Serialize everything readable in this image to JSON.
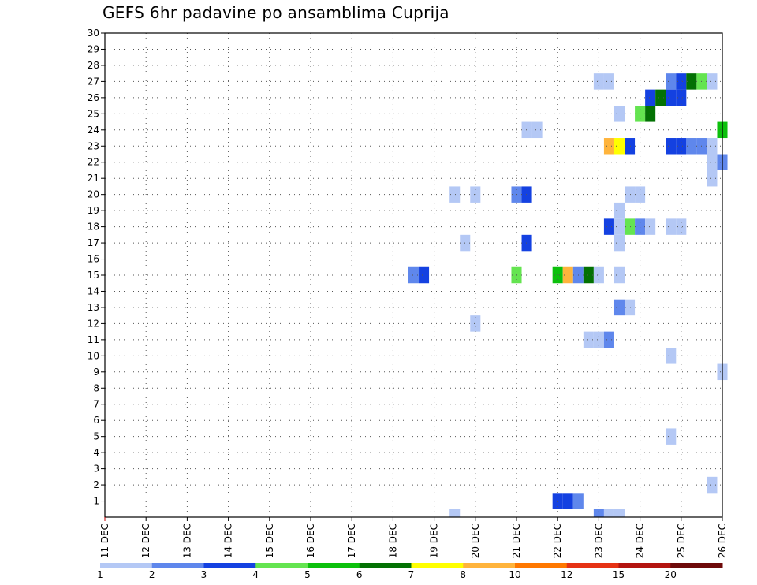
{
  "chart_data": {
    "type": "heatmap",
    "title": "GEFS 6hr padavine po ansamblima Cuprija",
    "xlabel": "",
    "ylabel": "",
    "x_ticks": [
      "11 DEC",
      "12 DEC",
      "13 DEC",
      "14 DEC",
      "15 DEC",
      "16 DEC",
      "17 DEC",
      "18 DEC",
      "19 DEC",
      "20 DEC",
      "21 DEC",
      "22 DEC",
      "23 DEC",
      "24 DEC",
      "25 DEC",
      "26 DEC"
    ],
    "xlim": [
      11,
      26
    ],
    "y_ticks": [
      1,
      2,
      3,
      4,
      5,
      6,
      7,
      8,
      9,
      10,
      11,
      12,
      13,
      14,
      15,
      16,
      17,
      18,
      19,
      20,
      21,
      22,
      23,
      24,
      25,
      26,
      27,
      28,
      29,
      30
    ],
    "ylim": [
      0,
      30
    ],
    "grid": true,
    "legend_position": "bottom",
    "colorbar": {
      "labels": [
        "1",
        "2",
        "3",
        "4",
        "5",
        "6",
        "7",
        "8",
        "10",
        "12",
        "15",
        "20"
      ],
      "colors": [
        "#b4c8f5",
        "#5f87ec",
        "#1441e1",
        "#64e450",
        "#0cc00c",
        "#037103",
        "#ffff00",
        "#ffb43c",
        "#ff7800",
        "#e63214",
        "#b41410",
        "#6e0a0a"
      ]
    },
    "cells": [
      {
        "time": "22.0",
        "member": 1,
        "level": 3
      },
      {
        "time": "22.25",
        "member": 1,
        "level": 3
      },
      {
        "time": "22.5",
        "member": 1,
        "level": 2
      },
      {
        "time": "25.75",
        "member": 2,
        "level": 1
      },
      {
        "time": "24.75",
        "member": 5,
        "level": 1
      },
      {
        "time": "26.0",
        "member": 9,
        "level": 1
      },
      {
        "time": "24.75",
        "member": 10,
        "level": 1
      },
      {
        "time": "22.75",
        "member": 11,
        "level": 1
      },
      {
        "time": "23.0",
        "member": 11,
        "level": 1
      },
      {
        "time": "23.25",
        "member": 11,
        "level": 2
      },
      {
        "time": "20.0",
        "member": 12,
        "level": 1
      },
      {
        "time": "23.5",
        "member": 13,
        "level": 2
      },
      {
        "time": "23.75",
        "member": 13,
        "level": 1
      },
      {
        "time": "18.5",
        "member": 15,
        "level": 2
      },
      {
        "time": "18.75",
        "member": 15,
        "level": 3
      },
      {
        "time": "21.0",
        "member": 15,
        "level": 4
      },
      {
        "time": "22.0",
        "member": 15,
        "level": 5
      },
      {
        "time": "22.25",
        "member": 15,
        "level": 8
      },
      {
        "time": "22.5",
        "member": 15,
        "level": 2
      },
      {
        "time": "22.75",
        "member": 15,
        "level": 6
      },
      {
        "time": "23.0",
        "member": 15,
        "level": 1
      },
      {
        "time": "23.5",
        "member": 15,
        "level": 1
      },
      {
        "time": "19.75",
        "member": 17,
        "level": 1
      },
      {
        "time": "21.25",
        "member": 17,
        "level": 3
      },
      {
        "time": "23.5",
        "member": 17,
        "level": 1
      },
      {
        "time": "23.25",
        "member": 18,
        "level": 3
      },
      {
        "time": "23.5",
        "member": 18,
        "level": 1
      },
      {
        "time": "23.75",
        "member": 18,
        "level": 4
      },
      {
        "time": "24.0",
        "member": 18,
        "level": 2
      },
      {
        "time": "24.25",
        "member": 18,
        "level": 1
      },
      {
        "time": "24.75",
        "member": 18,
        "level": 1
      },
      {
        "time": "25.0",
        "member": 18,
        "level": 1
      },
      {
        "time": "23.5",
        "member": 19,
        "level": 1
      },
      {
        "time": "19.5",
        "member": 20,
        "level": 1
      },
      {
        "time": "20.0",
        "member": 20,
        "level": 1
      },
      {
        "time": "21.0",
        "member": 20,
        "level": 2
      },
      {
        "time": "21.25",
        "member": 20,
        "level": 3
      },
      {
        "time": "23.75",
        "member": 20,
        "level": 1
      },
      {
        "time": "24.0",
        "member": 20,
        "level": 1
      },
      {
        "time": "25.75",
        "member": 21,
        "level": 1
      },
      {
        "time": "26.0",
        "member": 22,
        "level": 2
      },
      {
        "time": "25.75",
        "member": 22,
        "level": 1
      },
      {
        "time": "23.25",
        "member": 23,
        "level": 8
      },
      {
        "time": "23.5",
        "member": 23,
        "level": 7
      },
      {
        "time": "23.75",
        "member": 23,
        "level": 3
      },
      {
        "time": "24.75",
        "member": 23,
        "level": 3
      },
      {
        "time": "25.0",
        "member": 23,
        "level": 3
      },
      {
        "time": "25.25",
        "member": 23,
        "level": 2
      },
      {
        "time": "25.5",
        "member": 23,
        "level": 2
      },
      {
        "time": "25.75",
        "member": 23,
        "level": 1
      },
      {
        "time": "21.25",
        "member": 24,
        "level": 1
      },
      {
        "time": "21.5",
        "member": 24,
        "level": 1
      },
      {
        "time": "26.0",
        "member": 24,
        "level": 5
      },
      {
        "time": "23.5",
        "member": 25,
        "level": 1
      },
      {
        "time": "24.0",
        "member": 25,
        "level": 4
      },
      {
        "time": "24.25",
        "member": 25,
        "level": 6
      },
      {
        "time": "24.25",
        "member": 26,
        "level": 3
      },
      {
        "time": "24.5",
        "member": 26,
        "level": 6
      },
      {
        "time": "24.75",
        "member": 26,
        "level": 3
      },
      {
        "time": "25.0",
        "member": 26,
        "level": 3
      },
      {
        "time": "23.0",
        "member": 27,
        "level": 1
      },
      {
        "time": "23.25",
        "member": 27,
        "level": 1
      },
      {
        "time": "24.75",
        "member": 27,
        "level": 2
      },
      {
        "time": "25.0",
        "member": 27,
        "level": 3
      },
      {
        "time": "25.25",
        "member": 27,
        "level": 6
      },
      {
        "time": "25.5",
        "member": 27,
        "level": 4
      },
      {
        "time": "25.75",
        "member": 27,
        "level": 1
      },
      {
        "time": "19.5",
        "member": 0,
        "level": 1
      },
      {
        "time": "23.0",
        "member": 0,
        "level": 2
      },
      {
        "time": "23.25",
        "member": 0,
        "level": 1
      },
      {
        "time": "23.5",
        "member": 0,
        "level": 1
      }
    ]
  }
}
